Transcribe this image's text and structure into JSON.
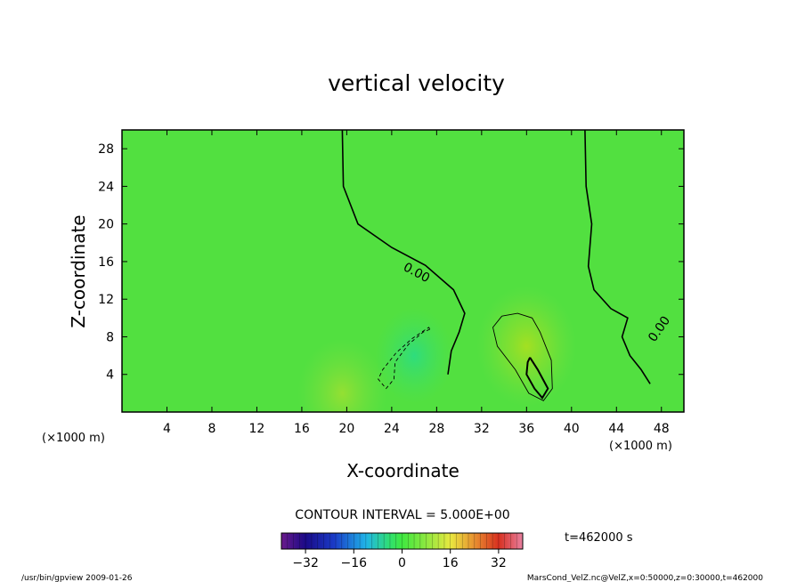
{
  "chart_data": {
    "type": "heatmap",
    "title": "vertical velocity",
    "xlabel": "X-coordinate",
    "ylabel": "Z-coordinate",
    "x_unit": "(×1000 m)",
    "z_unit": "(×1000 m)",
    "xlim": [
      0,
      50
    ],
    "ylim": [
      0,
      30
    ],
    "x_ticks": [
      4,
      8,
      12,
      16,
      20,
      24,
      28,
      32,
      36,
      40,
      44,
      48
    ],
    "y_ticks": [
      4,
      8,
      12,
      16,
      20,
      24,
      28
    ],
    "contour_interval_text": "CONTOUR INTERVAL = 5.000E+00",
    "contour_labels": [
      "0.00",
      "0.00"
    ],
    "colorbar": {
      "min": -40,
      "max": 40,
      "ticks": [
        -32,
        -16,
        0,
        16,
        32
      ]
    },
    "time_text": "t=462000 s",
    "features": [
      {
        "x": 36,
        "z": 7,
        "value": 6
      },
      {
        "x": 19.6,
        "z": 2,
        "value": 5
      },
      {
        "x": 26,
        "z": 6,
        "value": -4
      }
    ],
    "zero_contour_upper": [
      [
        19.6,
        30
      ],
      [
        19.7,
        24
      ],
      [
        21,
        20
      ],
      [
        24,
        17.5
      ],
      [
        27,
        15.6
      ],
      [
        29.5,
        13
      ],
      [
        30.5,
        10.5
      ],
      [
        30,
        8.5
      ],
      [
        29.3,
        6.5
      ],
      [
        29,
        4
      ]
    ],
    "zero_contour_right": [
      [
        41.2,
        30
      ],
      [
        41.3,
        24
      ],
      [
        41.8,
        20
      ],
      [
        41.5,
        15.5
      ],
      [
        42,
        13
      ],
      [
        43.5,
        11
      ],
      [
        45,
        10
      ],
      [
        44.5,
        8
      ],
      [
        45.2,
        6
      ],
      [
        46.2,
        4.5
      ],
      [
        47,
        3
      ]
    ],
    "strong_updraft_contour": [
      [
        36.3,
        5.8
      ],
      [
        37,
        4.5
      ],
      [
        37.9,
        2.5
      ],
      [
        37.4,
        1.5
      ],
      [
        36.7,
        2.5
      ],
      [
        36,
        4
      ],
      [
        36.1,
        5.3
      ]
    ],
    "weak_updraft_contour": [
      [
        33.8,
        10.2
      ],
      [
        35.2,
        10.5
      ],
      [
        36.5,
        10
      ],
      [
        37.2,
        8.5
      ],
      [
        38.2,
        5.5
      ],
      [
        38.3,
        2.5
      ],
      [
        37.5,
        1.2
      ],
      [
        36.2,
        2
      ],
      [
        35,
        4.5
      ],
      [
        33.4,
        7
      ],
      [
        33,
        9
      ]
    ],
    "downdraft_contour": [
      [
        27.4,
        8.8
      ],
      [
        26.8,
        8.5
      ],
      [
        25.5,
        7.2
      ],
      [
        24.3,
        5.3
      ],
      [
        24.2,
        3.5
      ],
      [
        23.5,
        2.5
      ],
      [
        22.8,
        3.5
      ],
      [
        23.2,
        4.5
      ],
      [
        24.4,
        6.3
      ],
      [
        25.8,
        7.8
      ],
      [
        27.3,
        9
      ]
    ]
  },
  "footer": {
    "left": "/usr/bin/gpview  2009-01-26",
    "right": "MarsCond_VelZ.nc@VelZ,x=0:50000,z=0:30000,t=462000"
  }
}
